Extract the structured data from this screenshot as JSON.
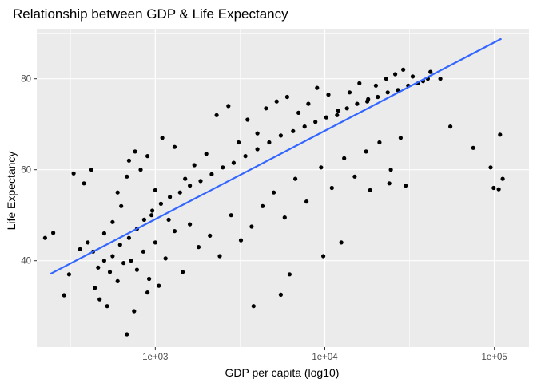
{
  "chart_data": {
    "type": "scatter",
    "title": "Relationship between GDP & Life Expectancy",
    "xlabel": "GDP per capita (log10)",
    "ylabel": "Life Expectancy",
    "x_scale": "log10",
    "xlim": [
      200,
      160000
    ],
    "ylim": [
      21,
      91
    ],
    "x_ticks": [
      {
        "value": 1000,
        "label": "1e+03"
      },
      {
        "value": 10000,
        "label": "1e+04"
      },
      {
        "value": 100000,
        "label": "1e+05"
      }
    ],
    "y_ticks": [
      {
        "value": 40,
        "label": "40"
      },
      {
        "value": 60,
        "label": "60"
      },
      {
        "value": 80,
        "label": "80"
      }
    ],
    "grid": true,
    "legend": "none",
    "colors": {
      "panel": "#ebebeb",
      "grid_major": "#ffffff",
      "points": "#000000",
      "trend_line": "#3366ff"
    },
    "trend_line": {
      "name": "linear fit",
      "points": [
        [
          241,
          37.1
        ],
        [
          110000,
          88.8
        ]
      ]
    },
    "series": [
      {
        "values": [
          [
            224,
            45.0
          ],
          [
            290,
            32.4
          ],
          [
            250,
            46.1
          ],
          [
            330,
            59.2
          ],
          [
            380,
            57.0
          ],
          [
            420,
            60.0
          ],
          [
            310,
            37.0
          ],
          [
            360,
            42.5
          ],
          [
            400,
            44.0
          ],
          [
            470,
            31.5
          ],
          [
            520,
            30.0
          ],
          [
            440,
            34.0
          ],
          [
            500,
            46.0
          ],
          [
            560,
            48.5
          ],
          [
            600,
            55.0
          ],
          [
            630,
            52.0
          ],
          [
            680,
            58.5
          ],
          [
            700,
            62.0
          ],
          [
            760,
            64.0
          ],
          [
            820,
            60.0
          ],
          [
            900,
            63.0
          ],
          [
            950,
            50.0
          ],
          [
            1000,
            55.5
          ],
          [
            1100,
            67.0
          ],
          [
            1200,
            49.0
          ],
          [
            1300,
            65.0
          ],
          [
            1500,
            58.0
          ],
          [
            1700,
            61.0
          ],
          [
            2000,
            63.5
          ],
          [
            2300,
            72.0
          ],
          [
            2700,
            74.0
          ],
          [
            3100,
            66.0
          ],
          [
            3500,
            71.0
          ],
          [
            4000,
            68.0
          ],
          [
            4500,
            73.5
          ],
          [
            5200,
            75.0
          ],
          [
            6000,
            76.0
          ],
          [
            7000,
            72.5
          ],
          [
            8000,
            74.5
          ],
          [
            9000,
            78.0
          ],
          [
            10500,
            76.5
          ],
          [
            12000,
            73.0
          ],
          [
            14000,
            77.0
          ],
          [
            16000,
            79.0
          ],
          [
            18000,
            75.5
          ],
          [
            20000,
            78.5
          ],
          [
            23000,
            80.0
          ],
          [
            26000,
            81.0
          ],
          [
            29000,
            82.0
          ],
          [
            33000,
            80.5
          ],
          [
            38000,
            79.5
          ],
          [
            42000,
            81.5
          ],
          [
            48000,
            80.0
          ],
          [
            55000,
            69.5
          ],
          [
            720,
            40.0
          ],
          [
            780,
            38.0
          ],
          [
            850,
            42.0
          ],
          [
            920,
            36.0
          ],
          [
            1000,
            44.0
          ],
          [
            1150,
            40.5
          ],
          [
            1300,
            46.5
          ],
          [
            1450,
            37.5
          ],
          [
            1600,
            48.0
          ],
          [
            1800,
            43.0
          ],
          [
            2100,
            45.5
          ],
          [
            2400,
            41.0
          ],
          [
            2800,
            50.0
          ],
          [
            3200,
            44.5
          ],
          [
            3700,
            47.5
          ],
          [
            4300,
            52.0
          ],
          [
            5000,
            55.0
          ],
          [
            5800,
            49.5
          ],
          [
            6700,
            58.0
          ],
          [
            7800,
            53.0
          ],
          [
            9500,
            60.5
          ],
          [
            11000,
            56.0
          ],
          [
            13000,
            62.5
          ],
          [
            15000,
            58.5
          ],
          [
            17500,
            64.0
          ],
          [
            21000,
            66.0
          ],
          [
            24500,
            60.0
          ],
          [
            28000,
            67.0
          ],
          [
            9800,
            41.0
          ],
          [
            12500,
            44.0
          ],
          [
            3800,
            30.0
          ],
          [
            5500,
            32.5
          ],
          [
            6200,
            37.0
          ],
          [
            18500,
            55.5
          ],
          [
            24000,
            57.0
          ],
          [
            30000,
            56.5
          ],
          [
            75000,
            64.8
          ],
          [
            95000,
            60.5
          ],
          [
            108000,
            67.7
          ],
          [
            112000,
            58.0
          ],
          [
            106000,
            55.7
          ],
          [
            99000,
            56.0
          ],
          [
            680,
            23.8
          ],
          [
            750,
            28.9
          ],
          [
            900,
            33.0
          ],
          [
            1050,
            34.5
          ],
          [
            600,
            35.5
          ],
          [
            650,
            39.5
          ],
          [
            560,
            41.0
          ],
          [
            620,
            43.5
          ],
          [
            540,
            37.5
          ],
          [
            500,
            40.0
          ],
          [
            460,
            38.5
          ],
          [
            430,
            42.0
          ],
          [
            700,
            45.0
          ],
          [
            780,
            47.0
          ],
          [
            860,
            49.0
          ],
          [
            960,
            51.0
          ],
          [
            1080,
            52.5
          ],
          [
            1220,
            54.0
          ],
          [
            1400,
            55.0
          ],
          [
            1600,
            56.5
          ],
          [
            1850,
            57.5
          ],
          [
            2150,
            59.0
          ],
          [
            2500,
            60.5
          ],
          [
            2900,
            61.5
          ],
          [
            3400,
            63.0
          ],
          [
            4000,
            64.5
          ],
          [
            4700,
            66.0
          ],
          [
            5500,
            67.5
          ],
          [
            6500,
            68.5
          ],
          [
            7600,
            69.5
          ],
          [
            8800,
            70.5
          ],
          [
            10200,
            71.5
          ],
          [
            11800,
            72.0
          ],
          [
            13500,
            73.5
          ],
          [
            15500,
            74.5
          ],
          [
            17800,
            75.0
          ],
          [
            20500,
            76.0
          ],
          [
            23500,
            77.0
          ],
          [
            27000,
            77.5
          ],
          [
            31000,
            78.5
          ],
          [
            35500,
            79.0
          ],
          [
            40500,
            80.0
          ]
        ]
      }
    ]
  }
}
